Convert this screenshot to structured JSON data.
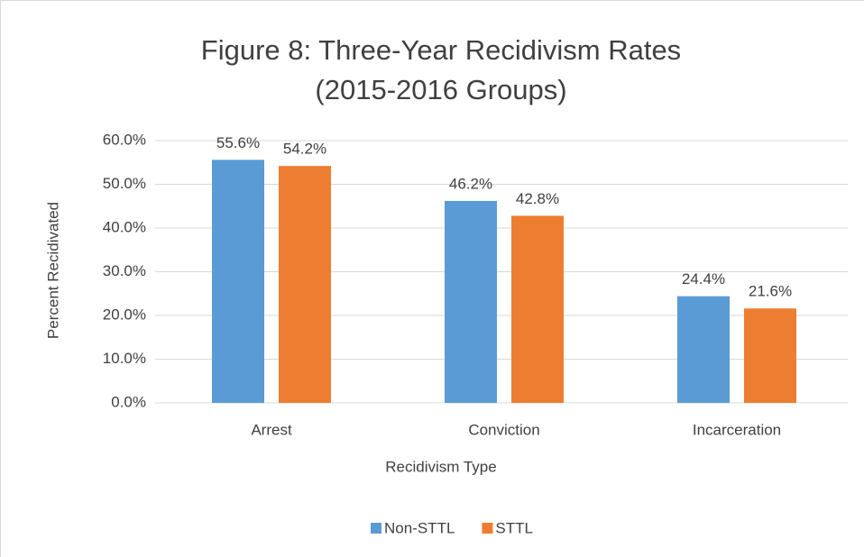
{
  "chart_data": {
    "type": "bar",
    "title": [
      "Figure 8: Three-Year Recidivism Rates",
      "(2015-2016 Groups)"
    ],
    "x_label": "Recidivism Type",
    "y_label": "Percent Recidivated",
    "categories": [
      "Arrest",
      "Conviction",
      "Incarceration"
    ],
    "series": [
      {
        "name": "Non-STTL",
        "color": "#5b9bd5",
        "values": [
          55.6,
          46.2,
          24.4
        ],
        "value_labels": [
          "55.6%",
          "46.2%",
          "24.4%"
        ]
      },
      {
        "name": "STTL",
        "color": "#ed7d31",
        "values": [
          54.2,
          42.8,
          21.6
        ],
        "value_labels": [
          "54.2%",
          "42.8%",
          "21.6%"
        ]
      }
    ],
    "ylim": [
      0,
      60
    ],
    "yticks": [
      {
        "value": 0,
        "label": "0.0%"
      },
      {
        "value": 10,
        "label": "10.0%"
      },
      {
        "value": 20,
        "label": "20.0%"
      },
      {
        "value": 30,
        "label": "30.0%"
      },
      {
        "value": 40,
        "label": "40.0%"
      },
      {
        "value": 50,
        "label": "50.0%"
      },
      {
        "value": 60,
        "label": "60.0%"
      }
    ],
    "grid": true,
    "legend": "bottom"
  }
}
